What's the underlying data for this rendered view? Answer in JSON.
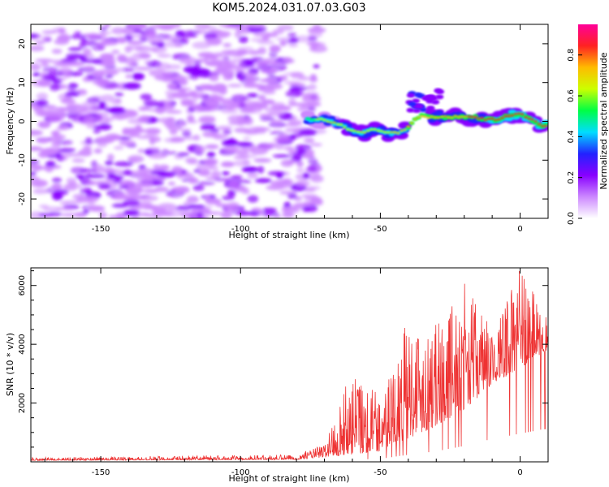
{
  "figure": {
    "title": "KOM5.2024.031.07.03.G03"
  },
  "chart_data": [
    {
      "type": "heatmap",
      "xlabel": "Height of straight line (km)",
      "ylabel": "Frequency (Hz)",
      "xlim": [
        -175,
        10
      ],
      "ylim": [
        -25,
        25
      ],
      "xticks": [
        -150,
        -100,
        -50,
        0
      ],
      "yticks": [
        -20,
        -10,
        0,
        10,
        20
      ],
      "grid": false,
      "ridge": {
        "x": [
          -76,
          -72,
          -68,
          -64,
          -60,
          -56,
          -52,
          -48,
          -44,
          -40,
          -36,
          -32,
          -28,
          -24,
          -20,
          -16,
          -12,
          -8,
          -4,
          0,
          4,
          8,
          10
        ],
        "f_hz": [
          0.5,
          0.5,
          0.0,
          -1.0,
          -2.5,
          -3.0,
          -2.0,
          -3.0,
          -3.0,
          -1.5,
          1.5,
          1.0,
          1.0,
          1.2,
          1.0,
          1.0,
          0.5,
          0.5,
          1.5,
          2.0,
          0.5,
          -1.0,
          -1.0
        ]
      },
      "colorbar": {
        "label": "Normalized spectral amplitude",
        "range": [
          0,
          0.95
        ],
        "ticks": [
          "0.0",
          "0.2",
          "0.4",
          "0.6",
          "0.8"
        ],
        "colors": [
          "#ffffff",
          "#cc88ff",
          "#8800ff",
          "#2222ff",
          "#00ddff",
          "#00ff44",
          "#ccff00",
          "#ffbb00",
          "#ff2222",
          "#ff0099"
        ]
      }
    },
    {
      "type": "line",
      "xlabel": "Height of straight line (km)",
      "ylabel": "SNR (10 * v/v)",
      "xlim": [
        -175,
        10
      ],
      "ylim": [
        0,
        6600
      ],
      "xticks": [
        -150,
        -100,
        -50,
        0
      ],
      "yticks": [
        2000,
        4000,
        6000
      ],
      "grid": false,
      "color": "#ee3333",
      "envelope": {
        "x": [
          -175,
          -80,
          -70,
          -60,
          -50,
          -40,
          -30,
          -20,
          -10,
          0,
          10
        ],
        "base": [
          50,
          80,
          150,
          250,
          350,
          800,
          1200,
          1800,
          2600,
          3200,
          3800
        ],
        "peak": [
          150,
          250,
          600,
          3200,
          2400,
          4900,
          4700,
          6100,
          4500,
          6600,
          5300
        ]
      }
    }
  ]
}
